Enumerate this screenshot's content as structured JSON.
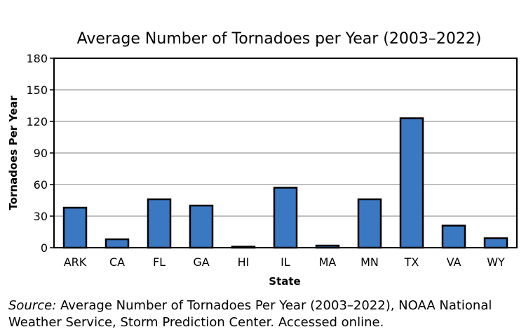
{
  "chart_data": {
    "type": "bar",
    "title": "Average Number of Tornadoes per Year  (2003–2022)",
    "xlabel": "State",
    "ylabel": "Tornadoes Per Year",
    "categories": [
      "ARK",
      "CA",
      "FL",
      "GA",
      "HI",
      "IL",
      "MA",
      "MN",
      "TX",
      "VA",
      "WY"
    ],
    "values": [
      38,
      8,
      46,
      40,
      1,
      57,
      2,
      46,
      123,
      21,
      9
    ],
    "ylim": [
      0,
      180
    ],
    "yticks": [
      0,
      30,
      60,
      90,
      120,
      150,
      180
    ],
    "grid": true,
    "legend": "none",
    "colors": {
      "bar_fill": "#3b78c2",
      "bar_stroke": "#000000",
      "grid": "#999999",
      "axis": "#000000"
    }
  },
  "source": {
    "lead": "Source:",
    "text": " Average Number of Tornadoes Per Year (2003–2022), NOAA National Weather Service, Storm Prediction Center. Accessed online."
  }
}
